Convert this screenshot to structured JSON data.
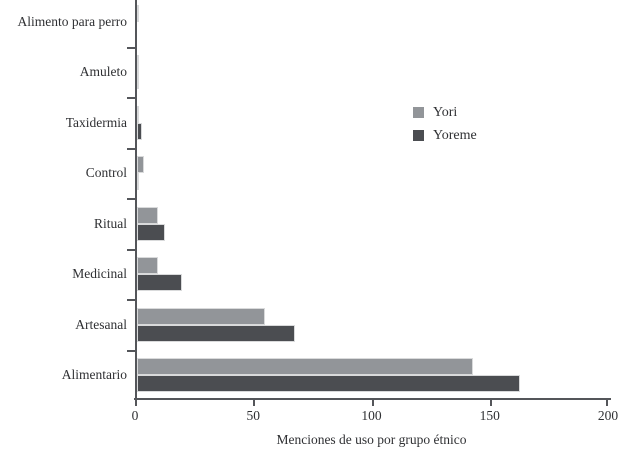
{
  "chart_data": {
    "type": "bar",
    "orientation": "horizontal",
    "title": "",
    "xlabel": "Menciones de uso por grupo étnico",
    "ylabel": "",
    "categories": [
      "Alimento para perro",
      "Amuleto",
      "Taxidermia",
      "Control",
      "Ritual",
      "Medicinal",
      "Artesanal",
      "Alimentario"
    ],
    "series": [
      {
        "name": "Yori",
        "color": "#929599",
        "values": [
          1,
          1,
          1,
          3,
          9,
          9,
          54,
          142
        ]
      },
      {
        "name": "Yoreme",
        "color": "#4b4d51",
        "values": [
          0,
          1,
          2,
          1,
          12,
          19,
          67,
          162
        ]
      }
    ],
    "x_ticks": [
      0,
      50,
      100,
      150,
      200
    ],
    "xlim": [
      0,
      200
    ],
    "grid": false,
    "legend_position": "inside-upper-right",
    "axis_color": "#54565a",
    "bar_border_color": "#d9dadb",
    "background_color": "#ffffff"
  }
}
